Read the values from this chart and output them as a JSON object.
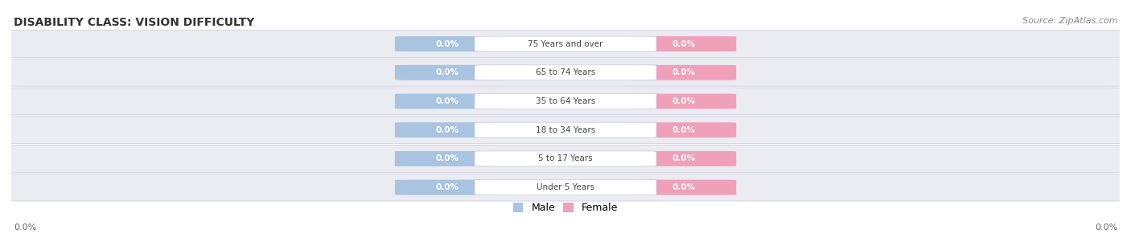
{
  "title": "DISABILITY CLASS: VISION DIFFICULTY",
  "source_text": "Source: ZipAtlas.com",
  "categories": [
    "Under 5 Years",
    "5 to 17 Years",
    "18 to 34 Years",
    "35 to 64 Years",
    "65 to 74 Years",
    "75 Years and over"
  ],
  "male_values": [
    0.0,
    0.0,
    0.0,
    0.0,
    0.0,
    0.0
  ],
  "female_values": [
    0.0,
    0.0,
    0.0,
    0.0,
    0.0,
    0.0
  ],
  "male_color": "#a8c4e0",
  "female_color": "#f0a0b8",
  "male_label": "Male",
  "female_label": "Female",
  "title_fontsize": 10,
  "source_fontsize": 8,
  "axis_label": "0.0%",
  "background_color": "#ffffff",
  "row_bg_color": "#ebebf2",
  "row_border_color": "#d0d0de",
  "center_label_bg": "#ffffff",
  "value_text_color": "#ffffff",
  "category_text_color": "#444444",
  "title_color": "#333333",
  "source_color": "#888888",
  "axis_text_color": "#666666"
}
